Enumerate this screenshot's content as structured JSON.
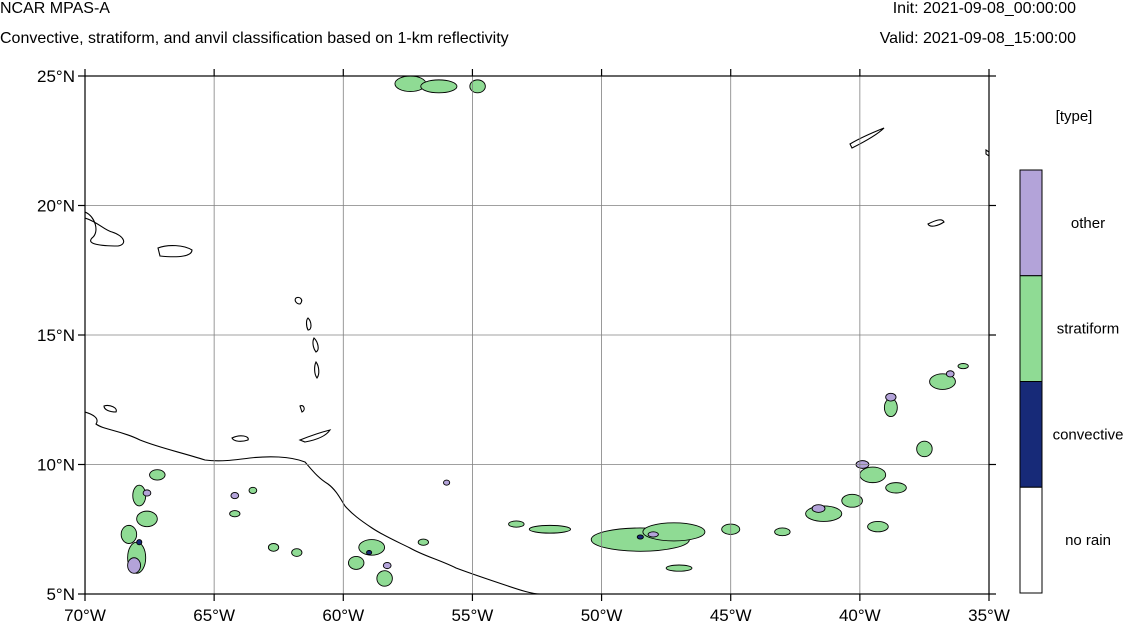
{
  "header": {
    "title": "NCAR MPAS-A",
    "subtitle": "Convective, stratiform, and anvil classification based on 1-km reflectivity",
    "init": "Init: 2021-09-08_00:00:00",
    "valid": "Valid: 2021-09-08_15:00:00"
  },
  "map": {
    "lon_range": [
      -70,
      -35
    ],
    "lat_range": [
      5,
      25
    ],
    "lon_ticks": [
      {
        "value": -70,
        "label": "70°W"
      },
      {
        "value": -65,
        "label": "65°W"
      },
      {
        "value": -60,
        "label": "60°W"
      },
      {
        "value": -55,
        "label": "55°W"
      },
      {
        "value": -50,
        "label": "50°W"
      },
      {
        "value": -45,
        "label": "45°W"
      },
      {
        "value": -40,
        "label": "40°W"
      },
      {
        "value": -35,
        "label": "35°W"
      }
    ],
    "lat_ticks": [
      {
        "value": 5,
        "label": "5°N"
      },
      {
        "value": 10,
        "label": "10°N"
      },
      {
        "value": 15,
        "label": "15°N"
      },
      {
        "value": 20,
        "label": "20°N"
      },
      {
        "value": 25,
        "label": "25°N"
      }
    ],
    "grid": true,
    "coastline_color": "#000000",
    "gridline_color": "#808080"
  },
  "colorbar": {
    "title": "[type]",
    "categories": [
      {
        "label": "other",
        "color": "#b3a3d9"
      },
      {
        "label": "stratiform",
        "color": "#8fdb94"
      },
      {
        "label": "convective",
        "color": "#172a78"
      },
      {
        "label": "no rain",
        "color": "#ffffff"
      }
    ]
  },
  "features": {
    "precip_regions": [
      {
        "type": "stratiform",
        "lon": -48.5,
        "lat": 7.1,
        "rlon": 1.9,
        "rlat": 0.45
      },
      {
        "type": "stratiform",
        "lon": -47.2,
        "lat": 7.4,
        "rlon": 1.2,
        "rlat": 0.35
      },
      {
        "type": "stratiform",
        "lon": -68.0,
        "lat": 6.4,
        "rlon": 0.35,
        "rlat": 0.6
      },
      {
        "type": "stratiform",
        "lon": -68.3,
        "lat": 7.3,
        "rlon": 0.3,
        "rlat": 0.35
      },
      {
        "type": "stratiform",
        "lon": -67.6,
        "lat": 7.9,
        "rlon": 0.4,
        "rlat": 0.3
      },
      {
        "type": "stratiform",
        "lon": -67.9,
        "lat": 8.8,
        "rlon": 0.25,
        "rlat": 0.4
      },
      {
        "type": "stratiform",
        "lon": -67.2,
        "lat": 9.6,
        "rlon": 0.3,
        "rlat": 0.2
      },
      {
        "type": "stratiform",
        "lon": -58.9,
        "lat": 6.8,
        "rlon": 0.5,
        "rlat": 0.3
      },
      {
        "type": "stratiform",
        "lon": -59.5,
        "lat": 6.2,
        "rlon": 0.3,
        "rlat": 0.25
      },
      {
        "type": "stratiform",
        "lon": -58.4,
        "lat": 5.6,
        "rlon": 0.3,
        "rlat": 0.3
      },
      {
        "type": "stratiform",
        "lon": -57.4,
        "lat": 24.7,
        "rlon": 0.6,
        "rlat": 0.3
      },
      {
        "type": "stratiform",
        "lon": -56.3,
        "lat": 24.6,
        "rlon": 0.7,
        "rlat": 0.25
      },
      {
        "type": "stratiform",
        "lon": -54.8,
        "lat": 24.6,
        "rlon": 0.3,
        "rlat": 0.25
      },
      {
        "type": "stratiform",
        "lon": -52.0,
        "lat": 7.5,
        "rlon": 0.8,
        "rlat": 0.15
      },
      {
        "type": "stratiform",
        "lon": -53.3,
        "lat": 7.7,
        "rlon": 0.3,
        "rlat": 0.12
      },
      {
        "type": "stratiform",
        "lon": -45.0,
        "lat": 7.5,
        "rlon": 0.35,
        "rlat": 0.2
      },
      {
        "type": "stratiform",
        "lon": -47.0,
        "lat": 6.0,
        "rlon": 0.5,
        "rlat": 0.12
      },
      {
        "type": "stratiform",
        "lon": -41.4,
        "lat": 8.1,
        "rlon": 0.7,
        "rlat": 0.3
      },
      {
        "type": "stratiform",
        "lon": -40.3,
        "lat": 8.6,
        "rlon": 0.4,
        "rlat": 0.25
      },
      {
        "type": "stratiform",
        "lon": -39.5,
        "lat": 9.6,
        "rlon": 0.5,
        "rlat": 0.3
      },
      {
        "type": "stratiform",
        "lon": -38.6,
        "lat": 9.1,
        "rlon": 0.4,
        "rlat": 0.2
      },
      {
        "type": "stratiform",
        "lon": -37.5,
        "lat": 10.6,
        "rlon": 0.3,
        "rlat": 0.3
      },
      {
        "type": "stratiform",
        "lon": -38.8,
        "lat": 12.2,
        "rlon": 0.25,
        "rlat": 0.35
      },
      {
        "type": "stratiform",
        "lon": -36.8,
        "lat": 13.2,
        "rlon": 0.5,
        "rlat": 0.3
      },
      {
        "type": "stratiform",
        "lon": -36.0,
        "lat": 13.8,
        "rlon": 0.2,
        "rlat": 0.1
      },
      {
        "type": "stratiform",
        "lon": -39.3,
        "lat": 7.6,
        "rlon": 0.4,
        "rlat": 0.2
      },
      {
        "type": "stratiform",
        "lon": -43.0,
        "lat": 7.4,
        "rlon": 0.3,
        "rlat": 0.15
      },
      {
        "type": "stratiform",
        "lon": -62.7,
        "lat": 6.8,
        "rlon": 0.2,
        "rlat": 0.15
      },
      {
        "type": "stratiform",
        "lon": -61.8,
        "lat": 6.6,
        "rlon": 0.2,
        "rlat": 0.15
      },
      {
        "type": "stratiform",
        "lon": -56.9,
        "lat": 7.0,
        "rlon": 0.2,
        "rlat": 0.12
      },
      {
        "type": "stratiform",
        "lon": -64.2,
        "lat": 8.1,
        "rlon": 0.2,
        "rlat": 0.12
      },
      {
        "type": "stratiform",
        "lon": -63.5,
        "lat": 9.0,
        "rlon": 0.15,
        "rlat": 0.12
      },
      {
        "type": "other",
        "lon": -68.1,
        "lat": 6.1,
        "rlon": 0.25,
        "rlat": 0.3
      },
      {
        "type": "other",
        "lon": -67.6,
        "lat": 8.9,
        "rlon": 0.15,
        "rlat": 0.12
      },
      {
        "type": "other",
        "lon": -39.9,
        "lat": 10.0,
        "rlon": 0.25,
        "rlat": 0.15
      },
      {
        "type": "other",
        "lon": -38.8,
        "lat": 12.6,
        "rlon": 0.2,
        "rlat": 0.15
      },
      {
        "type": "other",
        "lon": -41.6,
        "lat": 8.3,
        "rlon": 0.25,
        "rlat": 0.15
      },
      {
        "type": "other",
        "lon": -64.2,
        "lat": 8.8,
        "rlon": 0.15,
        "rlat": 0.12
      },
      {
        "type": "other",
        "lon": -58.3,
        "lat": 6.1,
        "rlon": 0.15,
        "rlat": 0.12
      },
      {
        "type": "other",
        "lon": -48.0,
        "lat": 7.3,
        "rlon": 0.2,
        "rlat": 0.1
      },
      {
        "type": "other",
        "lon": -56.0,
        "lat": 9.3,
        "rlon": 0.12,
        "rlat": 0.1
      },
      {
        "type": "other",
        "lon": -36.5,
        "lat": 13.5,
        "rlon": 0.15,
        "rlat": 0.12
      },
      {
        "type": "convective",
        "lon": -48.5,
        "lat": 7.2,
        "rlon": 0.12,
        "rlat": 0.08
      },
      {
        "type": "convective",
        "lon": -67.9,
        "lat": 7.0,
        "rlon": 0.1,
        "rlat": 0.1
      },
      {
        "type": "convective",
        "lon": -59.0,
        "lat": 6.6,
        "rlon": 0.1,
        "rlat": 0.08
      }
    ]
  }
}
